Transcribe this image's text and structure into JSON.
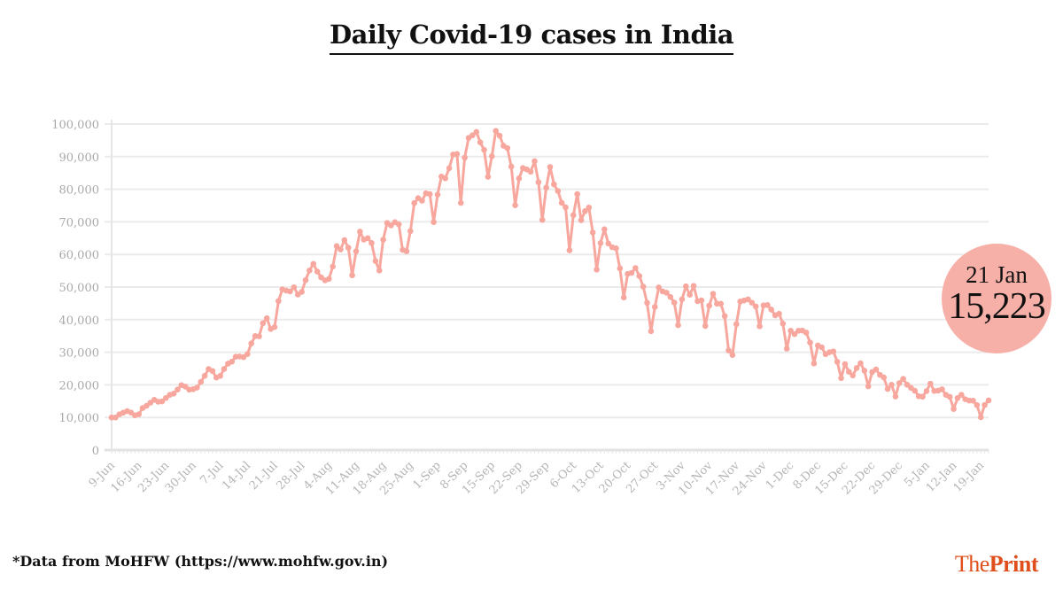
{
  "chart_data": {
    "type": "line",
    "title": "Daily Covid-19 cases in India",
    "xlabel": "",
    "ylabel": "",
    "ylim": [
      0,
      100000
    ],
    "y_ticks": [
      "0",
      "10,000",
      "20,000",
      "30,000",
      "40,000",
      "50,000",
      "60,000",
      "70,000",
      "80,000",
      "90,000",
      "100,000"
    ],
    "x_ticks": [
      "9-Jun",
      "16-Jun",
      "23-Jun",
      "30-Jun",
      "7-Jul",
      "14-Jul",
      "21-Jul",
      "28-Jul",
      "4-Aug",
      "11-Aug",
      "18-Aug",
      "25-Aug",
      "1-Sep",
      "8-Sep",
      "15-Sep",
      "22-Sep",
      "29-Sep",
      "6-Oct",
      "13-Oct",
      "20-Oct",
      "27-Oct",
      "3-Nov",
      "10-Nov",
      "17-Nov",
      "24-Nov",
      "1-Dec",
      "8-Dec",
      "15-Dec",
      "22-Dec",
      "29-Dec",
      "5-Jan",
      "12-Jan",
      "19-Jan"
    ],
    "grid": true,
    "line_color": "#f7a79d",
    "values": [
      9987,
      9985,
      10956,
      11458,
      11929,
      11502,
      10667,
      10974,
      12881,
      13586,
      14516,
      15413,
      14821,
      14933,
      15968,
      16922,
      17296,
      18552,
      19906,
      19459,
      18522,
      18653,
      19148,
      20903,
      22771,
      24850,
      24248,
      22252,
      22752,
      24879,
      26506,
      27114,
      28637,
      28701,
      28498,
      29429,
      32695,
      34956,
      34884,
      38902,
      40425,
      37148,
      37724,
      45720,
      49310,
      48916,
      48661,
      49931,
      47704,
      48513,
      52123,
      55078,
      57118,
      54736,
      52972,
      52050,
      52509,
      56282,
      62538,
      61537,
      64399,
      62064,
      53601,
      60963,
      66999,
      64553,
      65002,
      63490,
      57981,
      55079,
      64531,
      69652,
      68898,
      69878,
      69239,
      61408,
      60975,
      67151,
      75760,
      77266,
      76472,
      78761,
      78512,
      69921,
      78357,
      83883,
      83341,
      86432,
      90632,
      90802,
      75809,
      89706,
      95735,
      96551,
      97570,
      94372,
      92071,
      83809,
      90123,
      97894,
      96424,
      93337,
      92605,
      86961,
      75083,
      83347,
      86508,
      86052,
      85362,
      88600,
      82170,
      70589,
      80472,
      86821,
      81484,
      79476,
      75829,
      74442,
      61267,
      72049,
      78524,
      70496,
      73272,
      74383,
      66732,
      55342,
      63509,
      67708,
      63371,
      62212,
      61871,
      55722,
      46790,
      54044,
      54350,
      55839,
      53370,
      50129,
      45148,
      36470,
      43893,
      49881,
      48648,
      48268,
      46964,
      45231,
      38310,
      46254,
      50210,
      47638,
      50357,
      45674,
      45903,
      38074,
      44281,
      47905,
      44879,
      44878,
      41100,
      30548,
      29164,
      38617,
      45576,
      45882,
      46232,
      45209,
      44059,
      37975,
      44376,
      44489,
      43082,
      41322,
      41810,
      38772,
      31118,
      36604,
      35551,
      36594,
      36652,
      36011,
      32981,
      26567,
      32080,
      31521,
      29398,
      30006,
      30254,
      27071,
      22065,
      26382,
      24010,
      22890,
      25152,
      26624,
      24337,
      19556,
      23950,
      24712,
      23067,
      22273,
      18732,
      20021,
      16432,
      20550,
      21822,
      20036,
      19079,
      18177,
      16505,
      16375,
      18088,
      20346,
      18139,
      18222,
      18645,
      16946,
      16311,
      12584,
      15968,
      16946,
      15590,
      15158,
      15144,
      13788,
      10064,
      13823,
      15223
    ],
    "callout": {
      "date": "21 Jan",
      "value": "15,223",
      "color": "#f7b0a8"
    }
  },
  "footer": {
    "source": "*Data from MoHFW (https://www.mohfw.gov.in)",
    "logo_the": "The",
    "logo_print": "Print",
    "logo_color": "#e04e1b"
  }
}
